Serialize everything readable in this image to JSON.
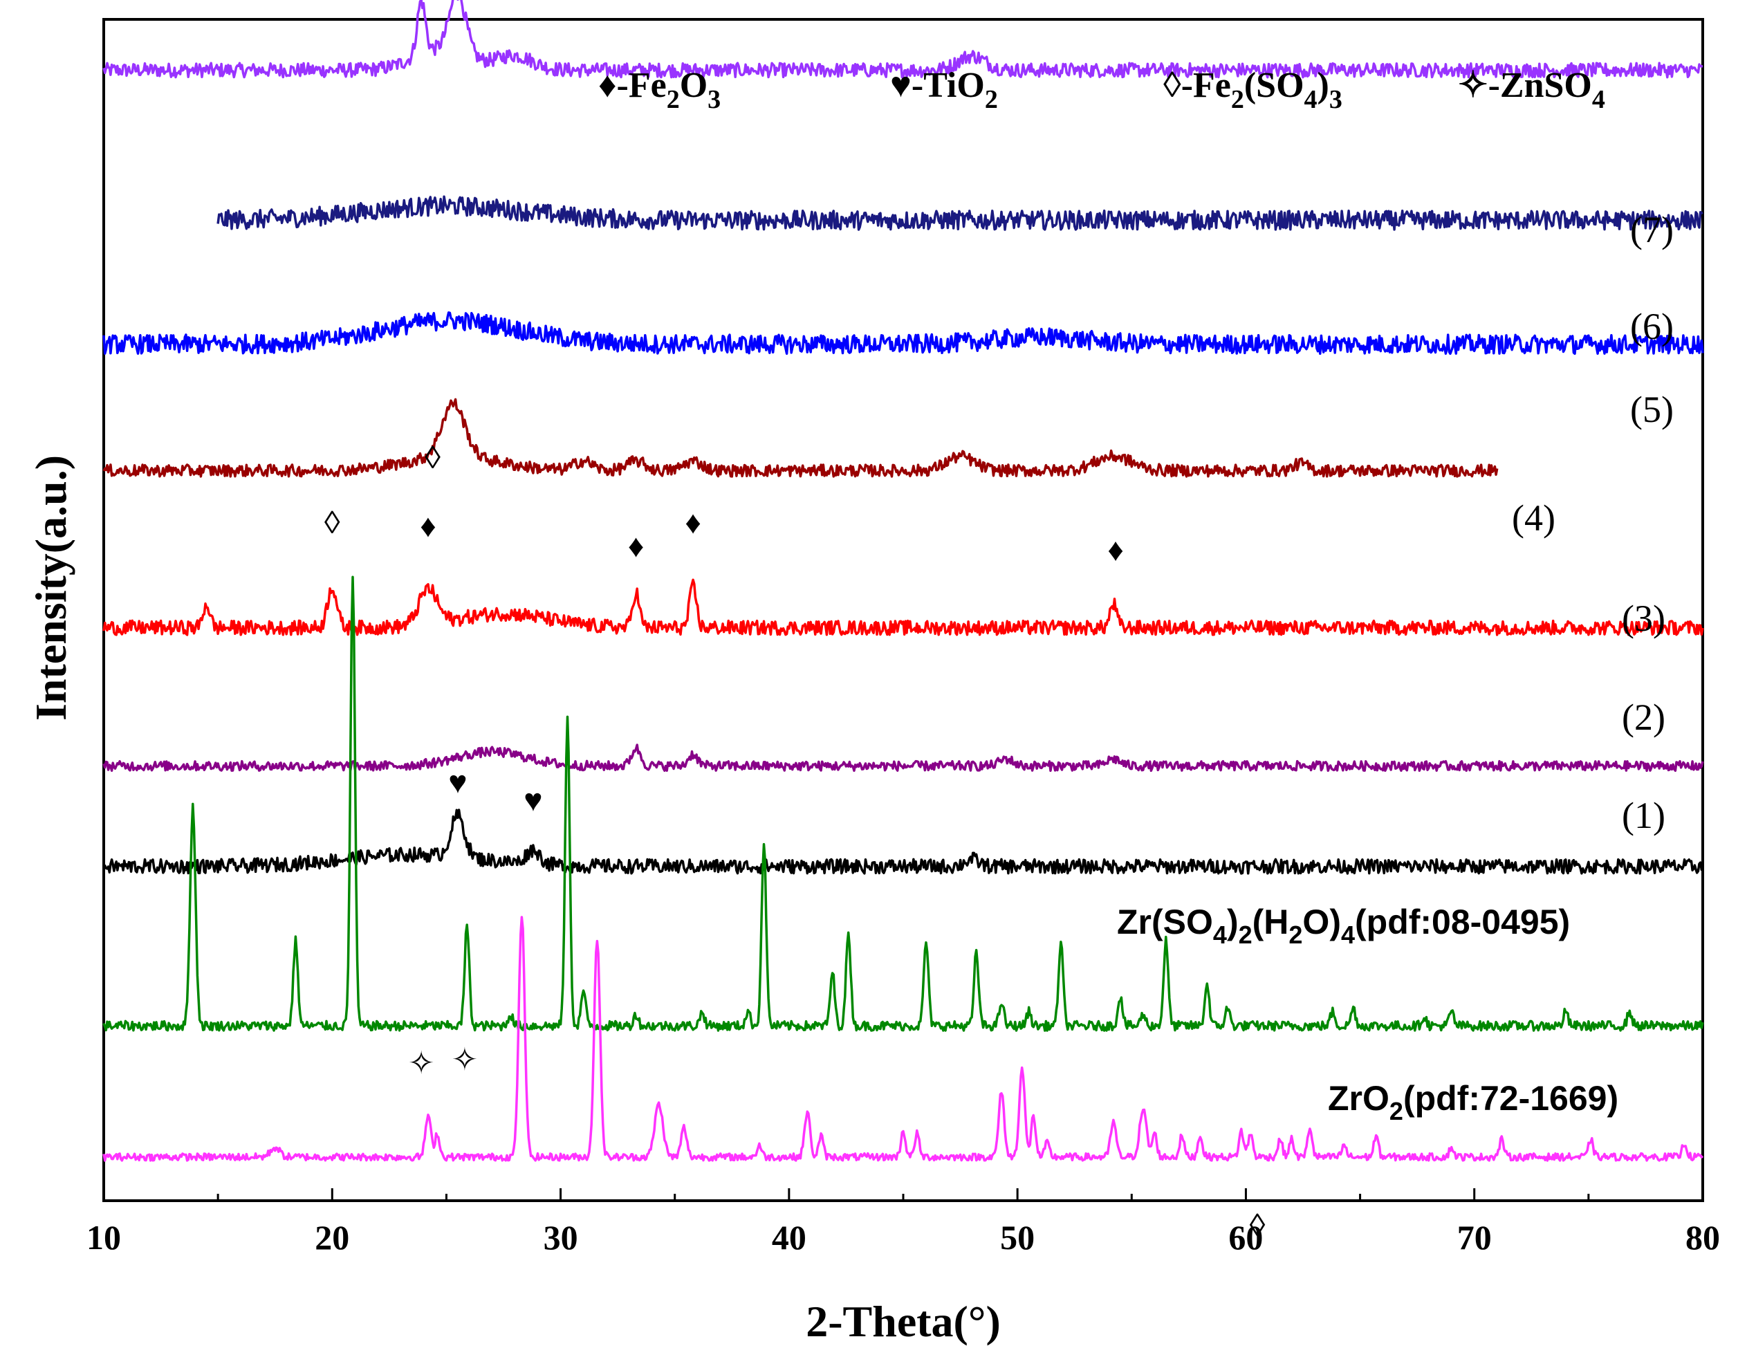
{
  "chart_data": {
    "type": "line",
    "title": "",
    "xlabel": "2-Theta(°)",
    "ylabel": "Intensity(a.u.)",
    "xlim": [
      10,
      80
    ],
    "xticks": [
      10,
      20,
      30,
      40,
      50,
      60,
      70,
      80
    ],
    "legend": {
      "placement": "top",
      "items": [
        {
          "symbol": "♦",
          "symbol_name": "filled-diamond",
          "prefix": "-Fe",
          "sub1": "2",
          "mid": "O",
          "sub2": "3",
          "suffix": ""
        },
        {
          "symbol": "♥",
          "symbol_name": "heart",
          "prefix": "-TiO",
          "sub1": "2",
          "mid": "",
          "sub2": "",
          "suffix": ""
        },
        {
          "symbol": "◊",
          "symbol_name": "open-diamond",
          "prefix": "-Fe",
          "sub1": "2",
          "mid": "(SO",
          "sub2": "4",
          "suffix": ")3"
        },
        {
          "symbol": "✧",
          "symbol_name": "open-star",
          "prefix": "-ZnSO",
          "sub1": "4",
          "mid": "",
          "sub2": "",
          "suffix": ""
        }
      ]
    },
    "series": [
      {
        "name": "(7)",
        "color": "#9933ff",
        "x_range": [
          10,
          80
        ],
        "baseline": 0.957,
        "noise": 0.006,
        "peaks": [
          [
            23.9,
            0.045,
            0.18
          ],
          [
            25.5,
            0.05,
            0.35
          ],
          [
            24.8,
            0.018,
            1.2
          ],
          [
            28.0,
            0.012,
            0.8
          ],
          [
            48.0,
            0.012,
            0.6
          ]
        ]
      },
      {
        "name": "(6)",
        "color": "#1a1a80",
        "x_range": [
          15,
          80
        ],
        "baseline": 0.83,
        "noise": 0.008,
        "peaks": [
          [
            25.0,
            0.012,
            3.5
          ]
        ]
      },
      {
        "name": "(5)",
        "color": "#0000ff",
        "x_range": [
          10,
          80
        ],
        "baseline": 0.725,
        "noise": 0.008,
        "peaks": [
          [
            25.2,
            0.02,
            3.0
          ],
          [
            51.0,
            0.006,
            2.0
          ]
        ]
      },
      {
        "name": "(4)",
        "color": "#990000",
        "x_range": [
          10,
          71
        ],
        "baseline": 0.618,
        "noise": 0.005,
        "peaks": [
          [
            25.3,
            0.045,
            0.5
          ],
          [
            25.3,
            0.012,
            2.0
          ],
          [
            31.0,
            0.008,
            0.4
          ],
          [
            33.3,
            0.008,
            0.4
          ],
          [
            35.8,
            0.008,
            0.4
          ],
          [
            47.5,
            0.012,
            0.6
          ],
          [
            54.2,
            0.012,
            0.8
          ],
          [
            62.4,
            0.006,
            0.3
          ]
        ]
      },
      {
        "name": "(3)",
        "color": "#ff0000",
        "x_range": [
          10,
          80
        ],
        "baseline": 0.485,
        "noise": 0.006,
        "peaks": [
          [
            14.5,
            0.02,
            0.15
          ],
          [
            20.0,
            0.035,
            0.2
          ],
          [
            24.2,
            0.03,
            0.4
          ],
          [
            27.5,
            0.012,
            2.0
          ],
          [
            33.3,
            0.03,
            0.15
          ],
          [
            35.8,
            0.035,
            0.15
          ],
          [
            54.2,
            0.02,
            0.15
          ]
        ]
      },
      {
        "name": "(2)",
        "color": "#880088",
        "x_range": [
          10,
          80
        ],
        "baseline": 0.368,
        "noise": 0.004,
        "peaks": [
          [
            27.0,
            0.012,
            1.5
          ],
          [
            33.3,
            0.015,
            0.2
          ],
          [
            35.8,
            0.01,
            0.2
          ],
          [
            49.5,
            0.006,
            0.3
          ],
          [
            54.2,
            0.006,
            0.3
          ]
        ]
      },
      {
        "name": "(1)",
        "color": "#000000",
        "x_range": [
          10,
          80
        ],
        "baseline": 0.283,
        "noise": 0.006,
        "peaks": [
          [
            25.5,
            0.035,
            0.3
          ],
          [
            23.5,
            0.01,
            3.0
          ],
          [
            28.8,
            0.012,
            0.3
          ],
          [
            48.0,
            0.006,
            0.3
          ]
        ]
      },
      {
        "name": "Zr(SO4)2(H2O)4(pdf:08-0495)",
        "color": "#008800",
        "x_range": [
          10,
          80
        ],
        "baseline": 0.148,
        "noise": 0.004,
        "peaks": [
          [
            13.9,
            0.185,
            0.12
          ],
          [
            18.4,
            0.072,
            0.1
          ],
          [
            20.9,
            0.38,
            0.1
          ],
          [
            25.9,
            0.085,
            0.1
          ],
          [
            27.8,
            0.01,
            0.1
          ],
          [
            30.3,
            0.26,
            0.1
          ],
          [
            31.0,
            0.03,
            0.1
          ],
          [
            33.3,
            0.01,
            0.1
          ],
          [
            36.2,
            0.012,
            0.1
          ],
          [
            38.2,
            0.012,
            0.1
          ],
          [
            38.9,
            0.155,
            0.1
          ],
          [
            41.9,
            0.045,
            0.1
          ],
          [
            42.6,
            0.08,
            0.1
          ],
          [
            46.0,
            0.072,
            0.1
          ],
          [
            48.2,
            0.062,
            0.1
          ],
          [
            49.3,
            0.02,
            0.1
          ],
          [
            50.5,
            0.012,
            0.1
          ],
          [
            51.9,
            0.07,
            0.1
          ],
          [
            54.5,
            0.025,
            0.1
          ],
          [
            55.5,
            0.01,
            0.1
          ],
          [
            56.5,
            0.072,
            0.1
          ],
          [
            58.3,
            0.035,
            0.1
          ],
          [
            59.2,
            0.015,
            0.1
          ],
          [
            63.8,
            0.012,
            0.1
          ],
          [
            64.7,
            0.015,
            0.1
          ],
          [
            67.8,
            0.008,
            0.1
          ],
          [
            69.0,
            0.012,
            0.1
          ],
          [
            74.0,
            0.012,
            0.1
          ],
          [
            76.8,
            0.012,
            0.1
          ]
        ]
      },
      {
        "name": "ZrO2(pdf:72-1669)",
        "color": "#ff33ff",
        "x_range": [
          10,
          80
        ],
        "baseline": 0.037,
        "noise": 0.003,
        "peaks": [
          [
            17.5,
            0.008,
            0.2
          ],
          [
            24.2,
            0.035,
            0.12
          ],
          [
            24.6,
            0.02,
            0.1
          ],
          [
            28.3,
            0.205,
            0.13
          ],
          [
            31.6,
            0.185,
            0.13
          ],
          [
            34.3,
            0.045,
            0.18
          ],
          [
            35.4,
            0.025,
            0.12
          ],
          [
            38.7,
            0.01,
            0.1
          ],
          [
            40.8,
            0.038,
            0.12
          ],
          [
            41.4,
            0.018,
            0.1
          ],
          [
            45.0,
            0.022,
            0.1
          ],
          [
            45.6,
            0.02,
            0.1
          ],
          [
            49.3,
            0.055,
            0.12
          ],
          [
            50.2,
            0.075,
            0.12
          ],
          [
            50.7,
            0.035,
            0.1
          ],
          [
            51.3,
            0.012,
            0.1
          ],
          [
            54.2,
            0.03,
            0.12
          ],
          [
            55.5,
            0.04,
            0.15
          ],
          [
            56.0,
            0.02,
            0.1
          ],
          [
            57.2,
            0.018,
            0.1
          ],
          [
            58.0,
            0.018,
            0.1
          ],
          [
            59.8,
            0.022,
            0.1
          ],
          [
            60.2,
            0.02,
            0.1
          ],
          [
            61.5,
            0.015,
            0.1
          ],
          [
            62.0,
            0.015,
            0.1
          ],
          [
            62.8,
            0.025,
            0.1
          ],
          [
            64.3,
            0.01,
            0.1
          ],
          [
            65.7,
            0.018,
            0.1
          ],
          [
            69.0,
            0.008,
            0.1
          ],
          [
            71.2,
            0.015,
            0.1
          ],
          [
            75.1,
            0.015,
            0.1
          ],
          [
            79.2,
            0.012,
            0.1
          ]
        ]
      }
    ],
    "markers": [
      {
        "symbol": "✧",
        "name": "star-marker",
        "x": 23.9,
        "y": 0.1075
      },
      {
        "symbol": "✧",
        "name": "star-marker",
        "x": 25.8,
        "y": 0.1105
      },
      {
        "symbol": "◊",
        "name": "open-diamond-marker",
        "x": 20.0,
        "y": 0.565
      },
      {
        "symbol": "◊",
        "name": "open-diamond-marker",
        "x": 24.4,
        "y": 0.62
      },
      {
        "symbol": "♦",
        "name": "filled-diamond-marker",
        "x": 24.2,
        "y": 0.562
      },
      {
        "symbol": "♦",
        "name": "filled-diamond-marker",
        "x": 33.3,
        "y": 0.545
      },
      {
        "symbol": "♦",
        "name": "filled-diamond-marker",
        "x": 35.8,
        "y": 0.565
      },
      {
        "symbol": "♦",
        "name": "filled-diamond-marker",
        "x": 54.3,
        "y": 0.542
      },
      {
        "symbol": "♥",
        "name": "heart-marker",
        "x": 25.5,
        "y": 0.345
      },
      {
        "symbol": "♥",
        "name": "heart-marker",
        "x": 28.8,
        "y": 0.33
      },
      {
        "symbol": "◊",
        "name": "open-diamond-marker",
        "x": 60.5,
        "y": -0.03
      }
    ]
  }
}
